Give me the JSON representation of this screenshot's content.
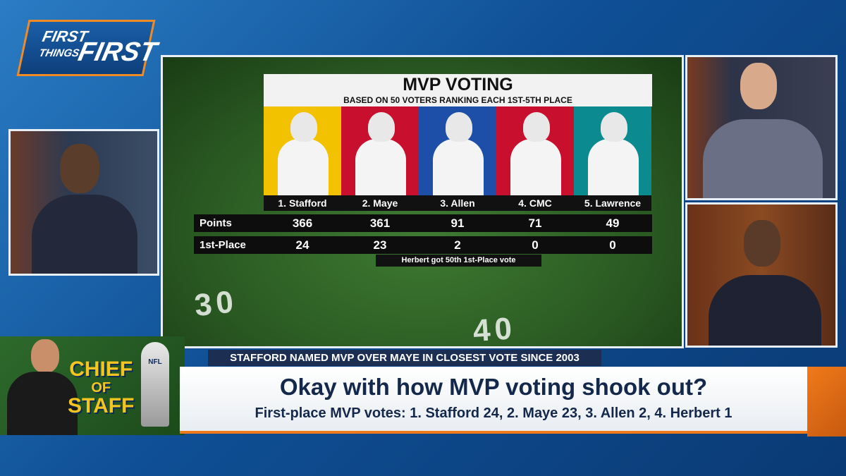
{
  "logo": [
    "FIRST",
    "THINGS",
    "FIRST"
  ],
  "graphic": {
    "title": "MVP VOTING",
    "subtitle": "BASED ON 50 VOTERS RANKING EACH 1ST-5TH PLACE",
    "players": [
      {
        "name": "1. Stafford",
        "color": "#f2c200"
      },
      {
        "name": "2. Maye",
        "color": "#c8102e"
      },
      {
        "name": "3. Allen",
        "color": "#1d4fa8"
      },
      {
        "name": "4. CMC",
        "color": "#c8102e"
      },
      {
        "name": "5. Lawrence",
        "color": "#0b8a8f"
      }
    ],
    "rows": [
      {
        "label": "Points",
        "values": [
          366,
          361,
          91,
          71,
          49
        ]
      },
      {
        "label": "1st-Place",
        "values": [
          24,
          23,
          2,
          0,
          0
        ]
      }
    ],
    "note": "Herbert got 50th 1st-Place vote"
  },
  "field_numbers": [
    "30",
    "40"
  ],
  "segment": {
    "badge": [
      "CHIEF",
      "OF",
      "STAFF"
    ],
    "trophy": "NFL"
  },
  "lower_third": {
    "kicker": "STAFFORD NAMED MVP OVER MAYE IN CLOSEST VOTE SINCE 2003",
    "headline": "Okay with how MVP voting shook out?",
    "subhead": "First-place MVP votes: 1. Stafford 24,  2. Maye 23,  3. Allen 2,  4. Herbert 1"
  }
}
